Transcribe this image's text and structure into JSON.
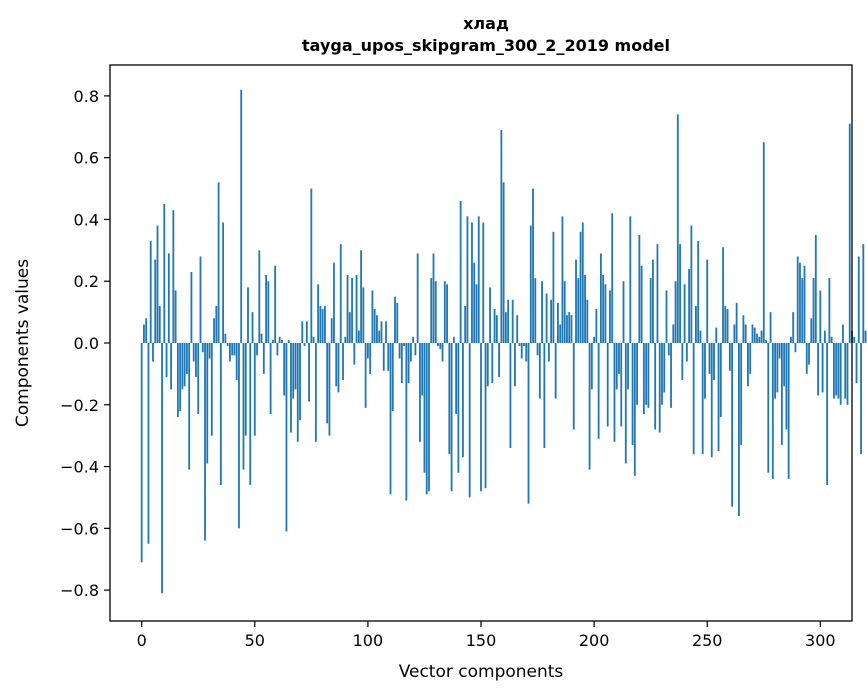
{
  "chart_data": {
    "type": "bar",
    "title": "хлад",
    "subtitle": "tayga_upos_skipgram_300_2_2019 model",
    "xlabel": "Vector components",
    "ylabel": "Components values",
    "xlim": [
      -14,
      314
    ],
    "ylim": [
      -0.9,
      0.9
    ],
    "x_ticks": [
      0,
      50,
      100,
      150,
      200,
      250,
      300
    ],
    "x_tick_labels": [
      "0",
      "50",
      "100",
      "150",
      "200",
      "250",
      "300"
    ],
    "y_ticks": [
      -0.8,
      -0.6,
      -0.4,
      -0.2,
      0.0,
      0.2,
      0.4,
      0.6,
      0.8
    ],
    "y_tick_labels": [
      "−0.8",
      "−0.6",
      "−0.4",
      "−0.2",
      "0.0",
      "0.2",
      "0.4",
      "0.6",
      "0.8"
    ],
    "bar_color": "#1f77b4",
    "values": [
      -0.71,
      0.06,
      0.08,
      -0.65,
      0.33,
      -0.06,
      0.27,
      0.38,
      0.12,
      -0.81,
      0.45,
      -0.11,
      0.29,
      -0.15,
      0.43,
      0.17,
      -0.24,
      -0.22,
      -0.15,
      -0.14,
      -0.1,
      -0.41,
      0.23,
      -0.06,
      -0.11,
      -0.23,
      0.28,
      -0.03,
      -0.64,
      -0.39,
      -0.05,
      -0.3,
      0.08,
      0.12,
      0.52,
      -0.46,
      0.39,
      0.03,
      -0.01,
      -0.06,
      -0.04,
      -0.04,
      -0.12,
      -0.6,
      0.82,
      -0.41,
      -0.3,
      0.18,
      -0.46,
      0.1,
      -0.3,
      -0.04,
      0.3,
      0.03,
      -0.1,
      0.22,
      0.2,
      -0.23,
      0.01,
      0.25,
      -0.04,
      0.02,
      0.01,
      -0.17,
      -0.61,
      0.01,
      -0.29,
      -0.18,
      -0.15,
      -0.32,
      -0.25,
      0.07,
      -0.01,
      0.07,
      -0.19,
      0.5,
      0.02,
      -0.32,
      0.19,
      0.12,
      0.11,
      0.12,
      -0.26,
      -0.3,
      0.08,
      0.26,
      -0.14,
      -0.16,
      0.32,
      -0.12,
      0.02,
      0.22,
      0.1,
      0.21,
      -0.07,
      0.22,
      0.04,
      0.3,
      0.18,
      -0.21,
      -0.05,
      -0.1,
      0.17,
      0.11,
      0.09,
      0.04,
      0.07,
      -0.09,
      0.07,
      -0.09,
      -0.49,
      -0.22,
      0.15,
      0.13,
      -0.05,
      -0.13,
      -0.01,
      -0.51,
      -0.13,
      -0.06,
      0.02,
      -0.04,
      0.29,
      -0.32,
      -0.17,
      -0.42,
      -0.49,
      -0.48,
      0.21,
      0.29,
      0.2,
      -0.01,
      -0.02,
      -0.06,
      0.2,
      0.19,
      -0.36,
      -0.48,
      0.02,
      -0.23,
      -0.42,
      0.46,
      -0.37,
      0.12,
      0.41,
      -0.5,
      0.39,
      0.26,
      0.19,
      0.41,
      -0.48,
      0.39,
      -0.47,
      -0.14,
      0.18,
      -0.13,
      0.11,
      0.09,
      -0.11,
      0.69,
      0.52,
      0.1,
      0.14,
      -0.34,
      0.14,
      -0.14,
      0.09,
      -0.01,
      -0.05,
      -0.01,
      -0.06,
      -0.52,
      0.38,
      0.5,
      0.21,
      -0.04,
      -0.18,
      0.2,
      -0.34,
      0.16,
      -0.06,
      0.14,
      0.36,
      -0.18,
      0.13,
      0.06,
      0.41,
      0.2,
      0.09,
      0.1,
      0.09,
      -0.28,
      0.27,
      0.21,
      0.36,
      0.39,
      0.22,
      0.14,
      -0.41,
      -0.15,
      0.02,
      0.11,
      -0.31,
      0.29,
      0.22,
      0.19,
      -0.27,
      0.17,
      0.42,
      -0.32,
      -0.15,
      -0.1,
      -0.27,
      0.2,
      -0.39,
      -0.15,
      0.41,
      -0.33,
      -0.43,
      -0.2,
      0.35,
      0.25,
      -0.23,
      -0.2,
      -0.21,
      0.21,
      0.27,
      -0.28,
      0.32,
      -0.29,
      -0.2,
      -0.16,
      0.17,
      -0.04,
      -0.21,
      0.06,
      0.2,
      0.74,
      0.32,
      -0.12,
      0.19,
      -0.06,
      0.24,
      0.38,
      -0.36,
      0.12,
      0.33,
      0.04,
      -0.36,
      -0.18,
      0.27,
      -0.1,
      -0.37,
      -0.12,
      0.05,
      -0.35,
      -0.24,
      0.31,
      0.12,
      0.11,
      -0.09,
      -0.53,
      0.06,
      0.13,
      -0.56,
      -0.33,
      0.09,
      0.06,
      -0.14,
      -0.1,
      0.06,
      0.05,
      0.03,
      0.02,
      0.04,
      0.65,
      0.01,
      -0.42,
      0.1,
      -0.44,
      -0.18,
      -0.16,
      -0.05,
      -0.33,
      -0.14,
      -0.28,
      -0.44,
      0.02,
      0.1,
      -0.03,
      0.28,
      0.26,
      0.21,
      0.25,
      -0.1,
      -0.07,
      0.08,
      0.21,
      0.35,
      -0.17,
      0.17,
      -0.16,
      0.04,
      -0.46,
      0.21,
      0.02,
      -0.18,
      -0.17,
      -0.18,
      -0.2,
      0.06,
      -0.18,
      -0.2,
      0.71,
      0.04,
      0.02,
      -0.13,
      0.28,
      -0.36,
      0.32,
      0.04
    ]
  }
}
